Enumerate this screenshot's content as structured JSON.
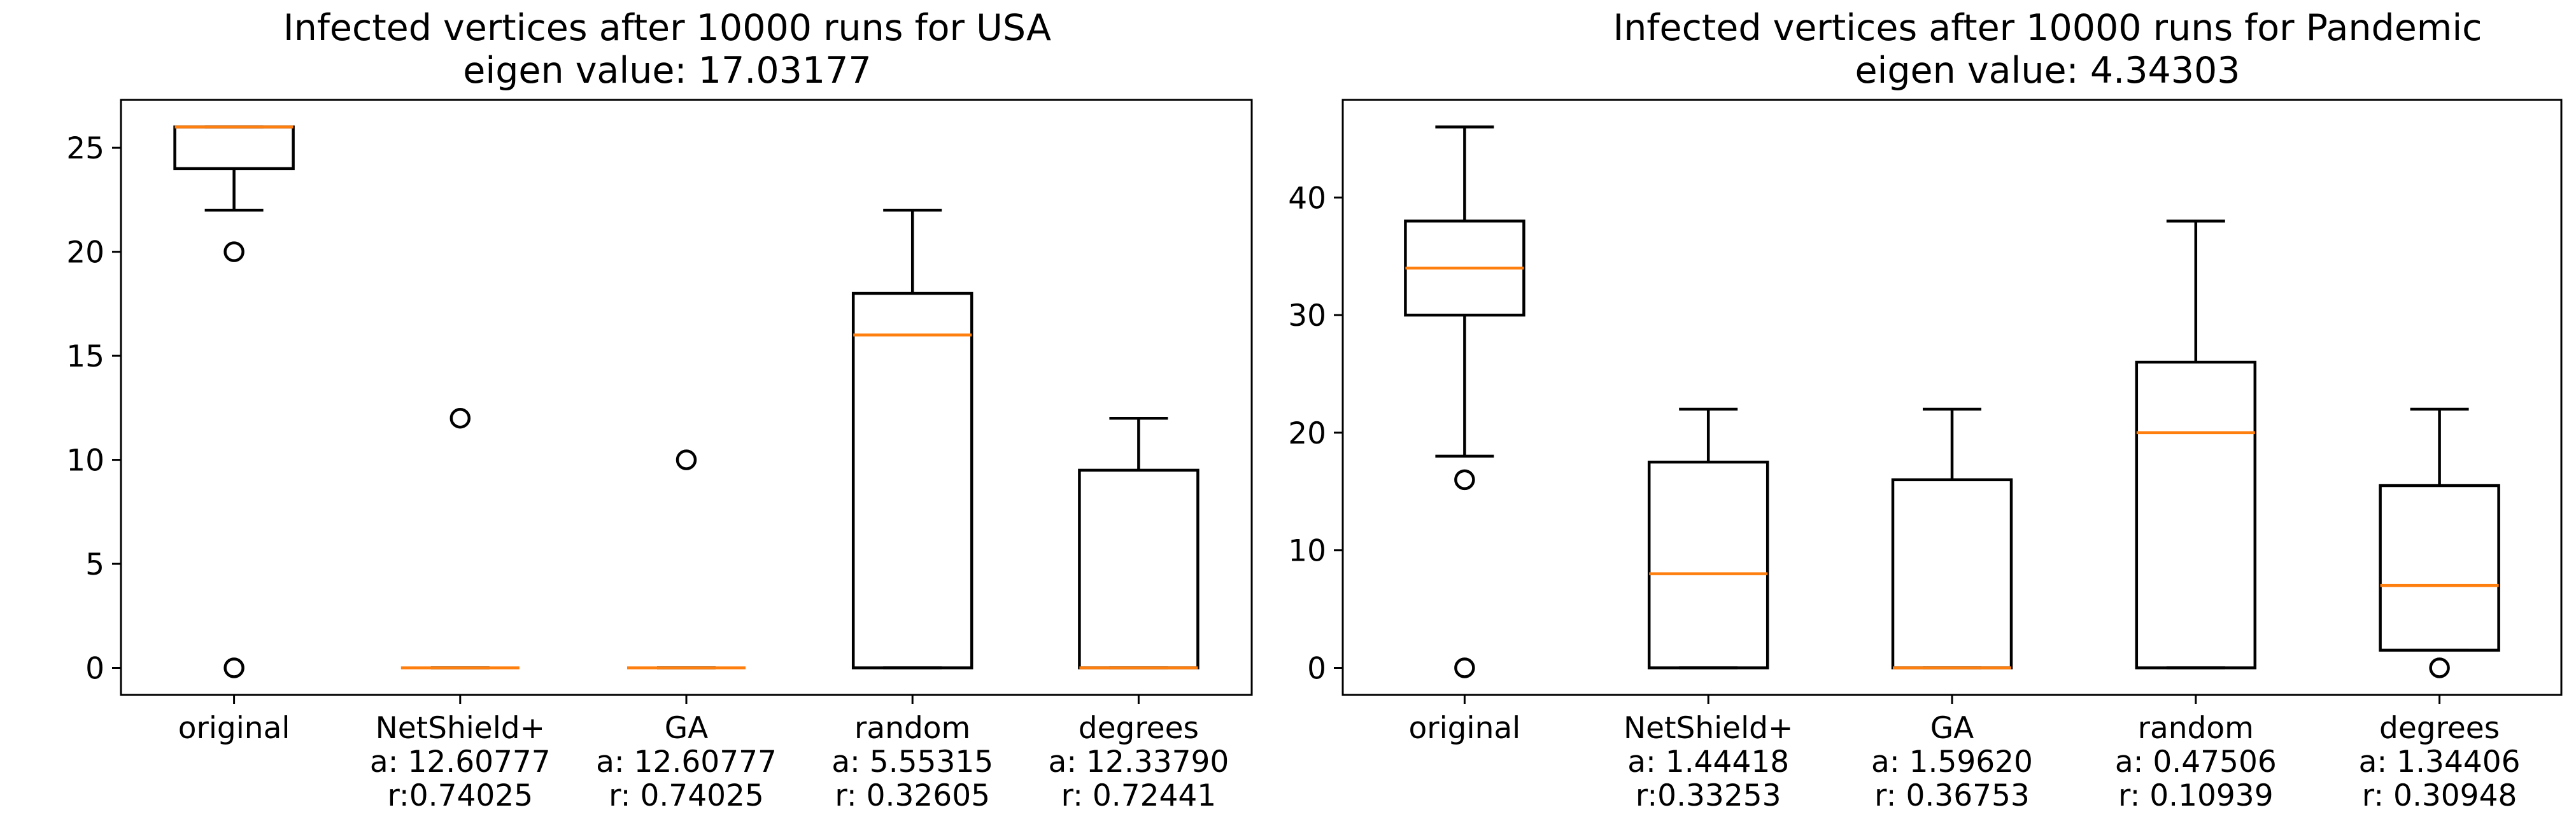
{
  "chart_data": [
    {
      "type": "boxplot",
      "title": "Infected vertices after 10000 runs for USA",
      "subtitle": "eigen value: 17.03177",
      "xlabel": "",
      "ylabel": "",
      "ylim": [
        -1.3,
        27.3
      ],
      "yticks": [
        0,
        5,
        10,
        15,
        20,
        25
      ],
      "grid": false,
      "categories": [
        {
          "lines": [
            "original"
          ]
        },
        {
          "lines": [
            "NetShield+",
            "a: 12.60777",
            "r:0.74025"
          ]
        },
        {
          "lines": [
            "GA",
            "a: 12.60777",
            "r: 0.74025"
          ]
        },
        {
          "lines": [
            "random",
            "a: 5.55315",
            "r: 0.32605"
          ]
        },
        {
          "lines": [
            "degrees",
            "a: 12.33790",
            "r: 0.72441"
          ]
        }
      ],
      "boxes": [
        {
          "whislo": 22,
          "q1": 24,
          "med": 26,
          "q3": 26,
          "whishi": 26,
          "fliers": [
            20,
            0
          ]
        },
        {
          "whislo": 0,
          "q1": 0,
          "med": 0,
          "q3": 0,
          "whishi": 0,
          "fliers": [
            12
          ]
        },
        {
          "whislo": 0,
          "q1": 0,
          "med": 0,
          "q3": 0,
          "whishi": 0,
          "fliers": [
            10
          ]
        },
        {
          "whislo": 0,
          "q1": 0,
          "med": 16,
          "q3": 18,
          "whishi": 22,
          "fliers": []
        },
        {
          "whislo": 0,
          "q1": 0,
          "med": 0,
          "q3": 9.5,
          "whishi": 12,
          "fliers": []
        }
      ]
    },
    {
      "type": "boxplot",
      "title": "Infected vertices after 10000 runs for Pandemic",
      "subtitle": "eigen value: 4.34303",
      "xlabel": "",
      "ylabel": "",
      "ylim": [
        -2.3,
        48.3
      ],
      "yticks": [
        0,
        10,
        20,
        30,
        40
      ],
      "grid": false,
      "categories": [
        {
          "lines": [
            "original"
          ]
        },
        {
          "lines": [
            "NetShield+",
            "a: 1.44418",
            "r:0.33253"
          ]
        },
        {
          "lines": [
            "GA",
            "a: 1.59620",
            "r: 0.36753"
          ]
        },
        {
          "lines": [
            "random",
            "a: 0.47506",
            "r: 0.10939"
          ]
        },
        {
          "lines": [
            "degrees",
            "a: 1.34406",
            "r: 0.30948"
          ]
        }
      ],
      "boxes": [
        {
          "whislo": 18,
          "q1": 30,
          "med": 34,
          "q3": 38,
          "whishi": 46,
          "fliers": [
            16,
            0
          ]
        },
        {
          "whislo": 0,
          "q1": 0,
          "med": 8,
          "q3": 17.5,
          "whishi": 22,
          "fliers": []
        },
        {
          "whislo": 0,
          "q1": 0,
          "med": 0,
          "q3": 16,
          "whishi": 22,
          "fliers": []
        },
        {
          "whislo": 0,
          "q1": 0,
          "med": 20,
          "q3": 26,
          "whishi": 38,
          "fliers": []
        },
        {
          "whislo": 1.5,
          "q1": 1.5,
          "med": 7,
          "q3": 15.5,
          "whishi": 22,
          "fliers": [
            0
          ]
        }
      ]
    }
  ],
  "colors": {
    "box": "#000000",
    "median": "#ff7f0e",
    "axes": "#000000",
    "background": "#ffffff"
  }
}
